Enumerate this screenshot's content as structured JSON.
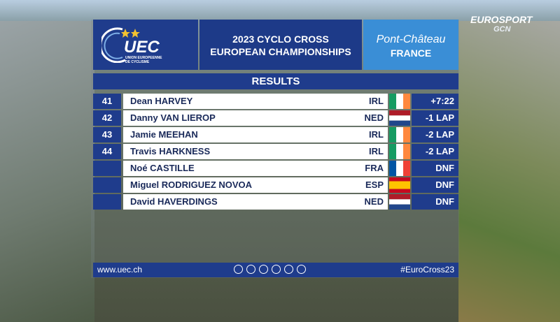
{
  "broadcaster": {
    "name": "EUROSPORT",
    "partner": "GCN"
  },
  "header": {
    "logo": "UEC",
    "logo_subtitle": "UNION EUROPEENNE DE CYCLISME",
    "title_line1": "2023 CYCLO CROSS",
    "title_line2": "EUROPEAN CHAMPIONSHIPS",
    "city": "Pont-Château",
    "country": "FRANCE"
  },
  "section_title": "RESULTS",
  "rows": [
    {
      "rank": "41",
      "name": "Dean HARVEY",
      "nation": "IRL",
      "result": "+7:22"
    },
    {
      "rank": "42",
      "name": "Danny VAN LIEROP",
      "nation": "NED",
      "result": "-1 LAP"
    },
    {
      "rank": "43",
      "name": "Jamie MEEHAN",
      "nation": "IRL",
      "result": "-2 LAP"
    },
    {
      "rank": "44",
      "name": "Travis HARKNESS",
      "nation": "IRL",
      "result": "-2 LAP"
    },
    {
      "name": "Noé CASTILLE",
      "nation": "FRA",
      "result": "DNF"
    },
    {
      "name": "Miguel RODRIGUEZ NOVOA",
      "nation": "ESP",
      "result": "DNF"
    },
    {
      "name": "David HAVERDINGS",
      "nation": "NED",
      "result": "DNF"
    }
  ],
  "footer": {
    "website": "www.uec.ch",
    "hashtag": "#EuroCross23"
  }
}
